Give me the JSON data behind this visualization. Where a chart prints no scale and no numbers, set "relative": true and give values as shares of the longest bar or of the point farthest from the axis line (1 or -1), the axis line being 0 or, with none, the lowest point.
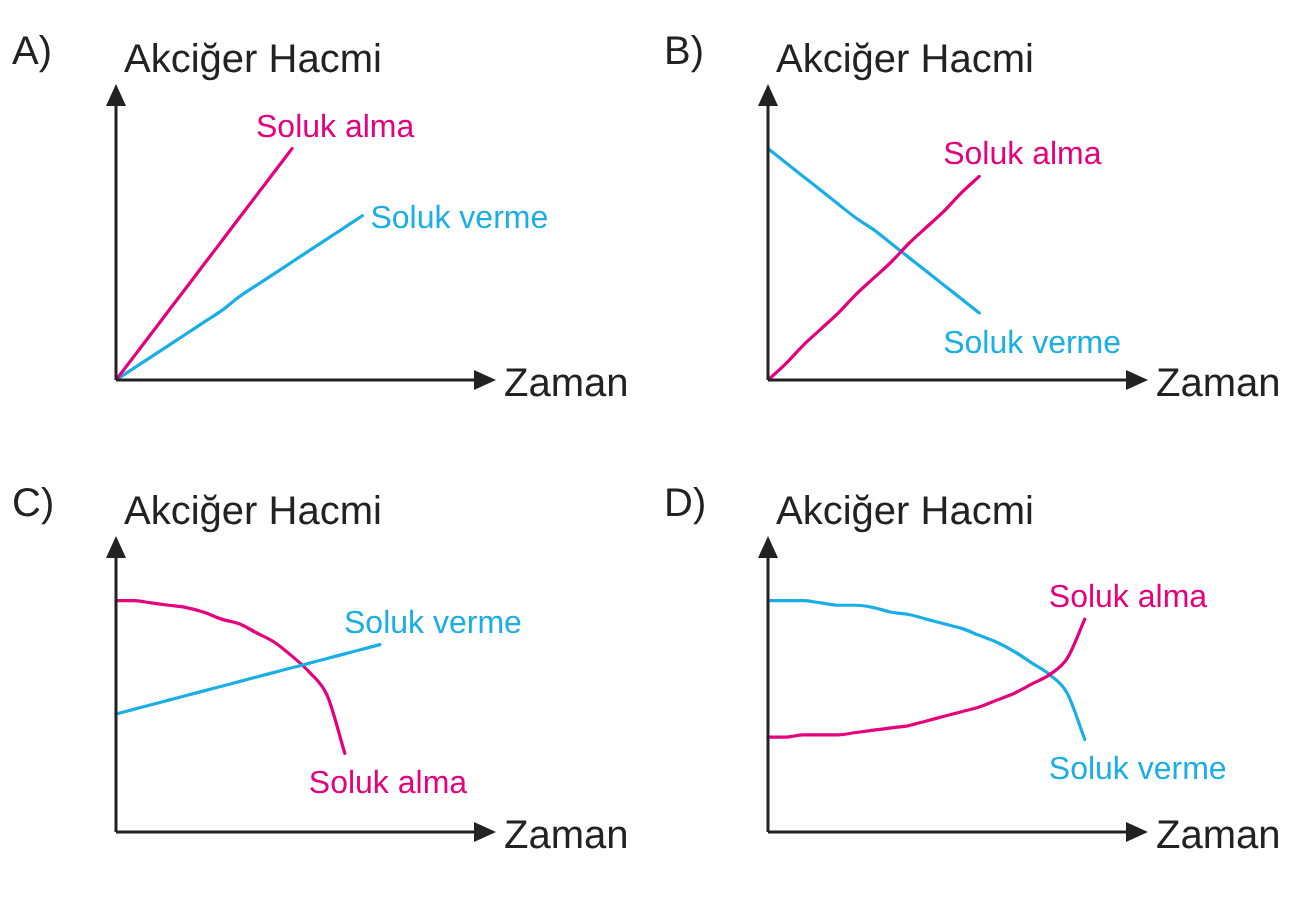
{
  "chart_data": [
    {
      "type": "line",
      "title": "A)",
      "xlabel": "Zaman",
      "ylabel": "Akciğer Hacmi",
      "relative": true,
      "categories": [
        null,
        null,
        null,
        null,
        null,
        null,
        null,
        null,
        null,
        null,
        null,
        null,
        null,
        null,
        null,
        null,
        null,
        null,
        null,
        null,
        null
      ],
      "series": [
        {
          "name": "Soluk alma",
          "color": "#e5007d",
          "values": [
            0,
            0.1,
            0.2,
            0.3,
            0.4,
            0.5,
            0.6,
            0.7,
            0.8,
            0.9,
            1,
            null,
            null,
            null,
            null,
            null,
            null,
            null,
            null,
            null,
            null
          ]
        },
        {
          "name": "Soluk verme",
          "color": "#1aaee6",
          "values": [
            0,
            0.05,
            0.1,
            0.15,
            0.2,
            0.25,
            0.3,
            0.36,
            0.41,
            0.46,
            0.51,
            0.56,
            0.61,
            0.66,
            0.71,
            null,
            null,
            null,
            null,
            null,
            null
          ]
        }
      ]
    },
    {
      "type": "line",
      "title": "B)",
      "xlabel": "Zaman",
      "ylabel": "Akciğer Hacmi",
      "relative": true,
      "categories": [
        null,
        null,
        null,
        null,
        null,
        null,
        null,
        null,
        null,
        null,
        null,
        null,
        null,
        null,
        null,
        null,
        null,
        null,
        null,
        null,
        null
      ],
      "series": [
        {
          "name": "Soluk alma",
          "color": "#e5007d",
          "values": [
            0,
            0.07,
            0.15,
            0.22,
            0.29,
            0.37,
            0.44,
            0.51,
            0.59,
            0.66,
            0.73,
            0.81,
            0.88,
            null,
            null,
            null,
            null,
            null,
            null,
            null,
            null
          ]
        },
        {
          "name": "Soluk verme",
          "color": "#1aaee6",
          "values": [
            1,
            0.94,
            0.88,
            0.82,
            0.76,
            0.7,
            0.65,
            0.59,
            0.53,
            0.47,
            0.41,
            0.35,
            0.29,
            null,
            null,
            null,
            null,
            null,
            null,
            null,
            null
          ]
        }
      ]
    },
    {
      "type": "line",
      "title": "C)",
      "xlabel": "Zaman",
      "ylabel": "Akciğer Hacmi",
      "relative": true,
      "categories": [
        null,
        null,
        null,
        null,
        null,
        null,
        null,
        null,
        null,
        null,
        null,
        null,
        null,
        null,
        null,
        null,
        null,
        null,
        null,
        null,
        null
      ],
      "series": [
        {
          "name": "Soluk verme",
          "color": "#1aaee6",
          "values": [
            0.51,
            0.53,
            0.55,
            0.57,
            0.59,
            0.61,
            0.63,
            0.65,
            0.67,
            0.69,
            0.71,
            0.73,
            0.75,
            0.77,
            0.79,
            0.81,
            null,
            null,
            null,
            null,
            null
          ]
        },
        {
          "name": "Soluk alma",
          "color": "#e5007d",
          "values": [
            1,
            1,
            0.99,
            0.98,
            0.97,
            0.95,
            0.92,
            0.9,
            0.86,
            0.82,
            0.76,
            0.69,
            0.59,
            0.34,
            null,
            null,
            null,
            null,
            null,
            null,
            null
          ]
        }
      ]
    },
    {
      "type": "line",
      "title": "D)",
      "xlabel": "Zaman",
      "ylabel": "Akciğer Hacmi",
      "relative": true,
      "categories": [
        null,
        null,
        null,
        null,
        null,
        null,
        null,
        null,
        null,
        null,
        null,
        null,
        null,
        null,
        null,
        null,
        null,
        null,
        null,
        null,
        null
      ],
      "series": [
        {
          "name": "Soluk alma",
          "color": "#e5007d",
          "values": [
            0.41,
            0.41,
            0.42,
            0.42,
            0.42,
            0.43,
            0.44,
            0.45,
            0.46,
            0.48,
            0.5,
            0.52,
            0.54,
            0.57,
            0.6,
            0.64,
            0.68,
            0.75,
            0.92,
            null,
            null
          ]
        },
        {
          "name": "Soluk verme",
          "color": "#1aaee6",
          "values": [
            1,
            1,
            1,
            0.99,
            0.98,
            0.98,
            0.97,
            0.95,
            0.94,
            0.92,
            0.9,
            0.88,
            0.85,
            0.82,
            0.78,
            0.73,
            0.68,
            0.6,
            0.4,
            null,
            null
          ]
        }
      ]
    }
  ]
}
